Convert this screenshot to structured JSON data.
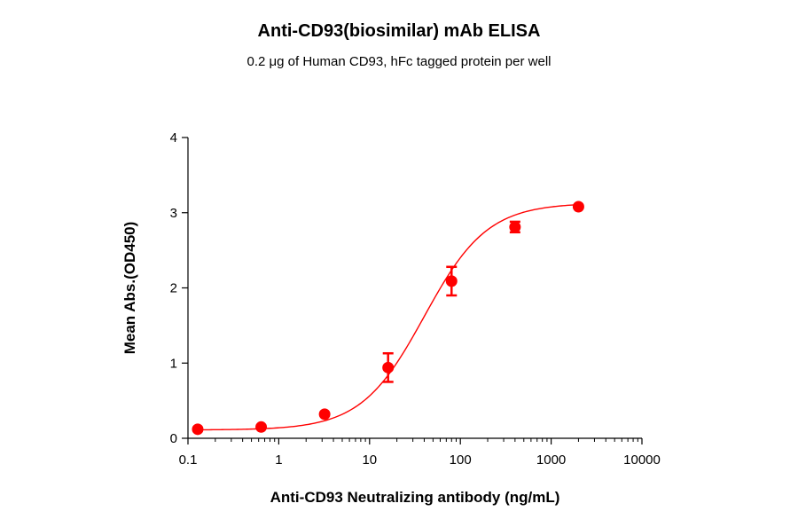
{
  "chart_data": {
    "type": "scatter",
    "title": "Anti-CD93(biosimilar) mAb ELISA",
    "subtitle": "0.2 μg of Human CD93, hFc tagged protein per well",
    "xlabel": "Anti-CD93 Neutralizing antibody (ng/mL)",
    "ylabel": "Mean Abs.(OD450)",
    "x_scale": "log10",
    "xlim": [
      0.1,
      10000
    ],
    "ylim": [
      0,
      4
    ],
    "x_ticks": [
      {
        "value": 0.1,
        "label": "0.1"
      },
      {
        "value": 1,
        "label": "1"
      },
      {
        "value": 10,
        "label": "10"
      },
      {
        "value": 100,
        "label": "100"
      },
      {
        "value": 1000,
        "label": "1000"
      },
      {
        "value": 10000,
        "label": "10000"
      }
    ],
    "y_ticks": [
      {
        "value": 0,
        "label": "0"
      },
      {
        "value": 1,
        "label": "1"
      },
      {
        "value": 2,
        "label": "2"
      },
      {
        "value": 3,
        "label": "3"
      },
      {
        "value": 4,
        "label": "4"
      }
    ],
    "grid": false,
    "color": "#ff0000",
    "series": [
      {
        "points": [
          {
            "x": 0.128,
            "y": 0.12,
            "err": 0.02
          },
          {
            "x": 0.64,
            "y": 0.15,
            "err": 0.02
          },
          {
            "x": 3.2,
            "y": 0.32,
            "err": 0.02
          },
          {
            "x": 16,
            "y": 0.94,
            "err": 0.19
          },
          {
            "x": 80,
            "y": 2.09,
            "err": 0.19
          },
          {
            "x": 400,
            "y": 2.81,
            "err": 0.07
          },
          {
            "x": 2000,
            "y": 3.08,
            "err": 0.02
          }
        ],
        "fit": {
          "model": "4PL",
          "bottom": 0.11,
          "top": 3.13,
          "ec50": 40,
          "hill": 1.25
        }
      }
    ]
  }
}
